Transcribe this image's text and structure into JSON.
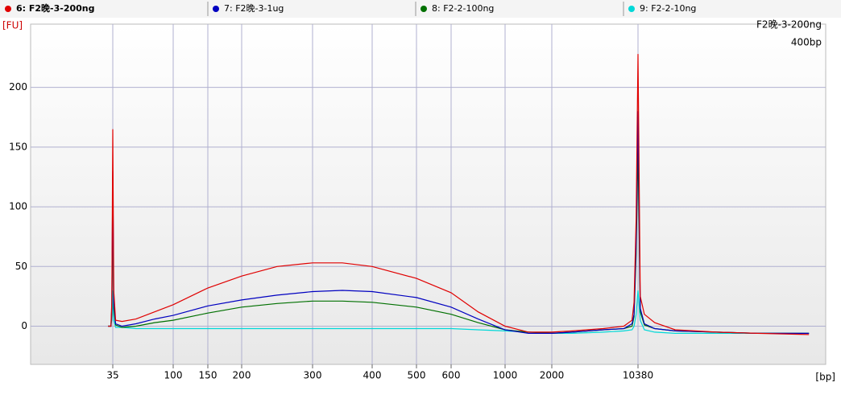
{
  "chart_data": {
    "type": "line",
    "y_label": "[FU]",
    "x_label": "[bp]",
    "annotations": [
      "F2晚-3-200ng",
      "400bp"
    ],
    "x": [
      30,
      33,
      34,
      35,
      36,
      38,
      45,
      60,
      80,
      100,
      150,
      200,
      250,
      300,
      350,
      400,
      500,
      600,
      800,
      1000,
      1500,
      2000,
      4000,
      7000,
      9000,
      9800,
      10000,
      10200,
      10380,
      10600,
      11000,
      12000,
      14000,
      18000,
      22000,
      27000
    ],
    "series": [
      {
        "name": "6: F2晚-3-200ng",
        "color": "#e00000",
        "values": [
          0,
          0,
          20,
          165,
          30,
          5,
          4,
          6,
          12,
          18,
          32,
          42,
          50,
          53,
          53,
          50,
          40,
          28,
          12,
          0,
          -5,
          -5,
          -4,
          -2,
          0,
          5,
          20,
          90,
          228,
          25,
          10,
          3,
          -3,
          -5,
          -6,
          -7
        ]
      },
      {
        "name": "7: F2晚-3-1ug",
        "color": "#0000c0",
        "values": [
          0,
          0,
          15,
          130,
          20,
          2,
          0,
          2,
          6,
          9,
          17,
          22,
          26,
          29,
          30,
          29,
          24,
          16,
          6,
          -3,
          -6,
          -6,
          -5,
          -3,
          -2,
          2,
          10,
          70,
          180,
          15,
          2,
          -2,
          -4,
          -5,
          -6,
          -6
        ]
      },
      {
        "name": "8: F2-2-100ng",
        "color": "#007000",
        "values": [
          0,
          0,
          10,
          100,
          15,
          1,
          -1,
          0,
          3,
          5,
          11,
          16,
          19,
          21,
          21,
          20,
          16,
          10,
          3,
          -3,
          -5,
          -6,
          -5,
          -3,
          -2,
          0,
          8,
          60,
          150,
          12,
          1,
          -2,
          -4,
          -5,
          -6,
          -6
        ]
      },
      {
        "name": "9: F2-2-10ng",
        "color": "#00d8d8",
        "values": [
          0,
          0,
          5,
          30,
          5,
          -1,
          -1,
          -2,
          -2,
          -2,
          -2,
          -2,
          -2,
          -2,
          -2,
          -2,
          -2,
          -2,
          -3,
          -4,
          -5,
          -6,
          -6,
          -5,
          -4,
          -3,
          0,
          10,
          30,
          5,
          -3,
          -5,
          -6,
          -6,
          -6,
          -6
        ]
      }
    ],
    "ylim": [
      -32,
      253
    ],
    "yticks": [
      0,
      50,
      100,
      150,
      200
    ],
    "xticks": [
      35,
      100,
      150,
      200,
      300,
      400,
      500,
      600,
      1000,
      2000,
      10380
    ],
    "grid": true
  }
}
